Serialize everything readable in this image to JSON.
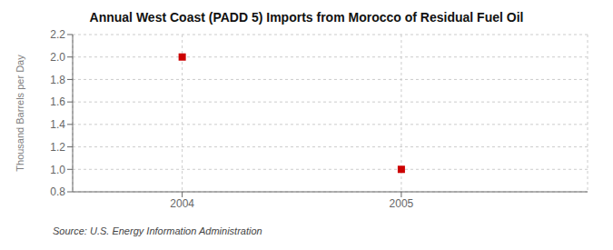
{
  "chart_data": {
    "type": "scatter",
    "title": "Annual West Coast (PADD 5) Imports from Morocco of Residual Fuel Oil",
    "ylabel": "Thousand Barrels per Day",
    "source": "Source: U.S. Energy Information Administration",
    "x": [
      2004,
      2005
    ],
    "values": [
      2.0,
      1.0
    ],
    "color": "#cc0000",
    "marker": "square",
    "xlim": [
      2003.5,
      2005.85
    ],
    "xticks": [
      2004,
      2005
    ],
    "ylim": [
      0.8,
      2.2
    ],
    "yticks": [
      0.8,
      {
        "value": 1.0,
        "label": "1.0"
      },
      1.2,
      1.4,
      1.6,
      1.8,
      {
        "value": 2.0,
        "label": "2.0"
      },
      2.2
    ],
    "grid": true
  }
}
